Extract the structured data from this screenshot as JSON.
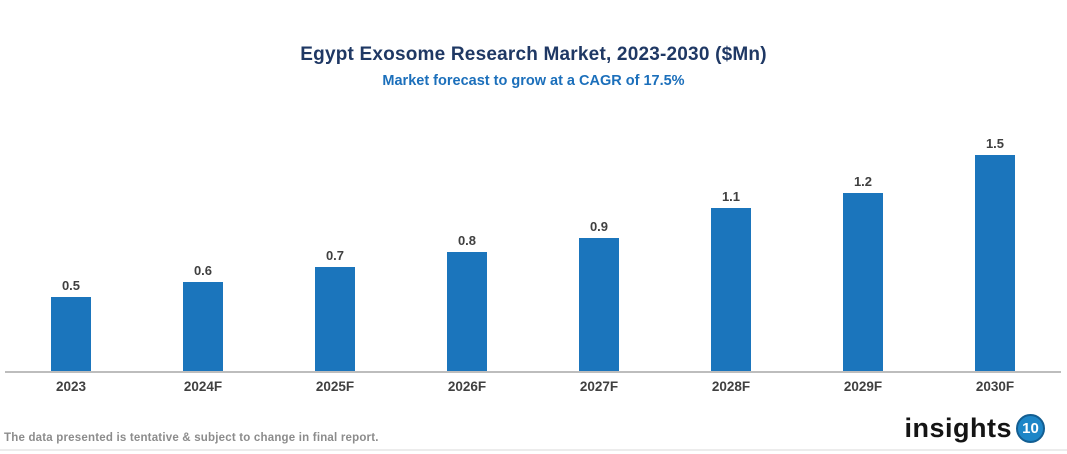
{
  "header": {
    "title": "Egypt Exosome Research Market, 2023-2030 ($Mn)",
    "subtitle": "Market forecast to grow at a CAGR of 17.5%"
  },
  "chart_data": {
    "type": "bar",
    "categories": [
      "2023",
      "2024F",
      "2025F",
      "2026F",
      "2027F",
      "2028F",
      "2029F",
      "2030F"
    ],
    "values": [
      0.5,
      0.6,
      0.7,
      0.8,
      0.9,
      1.1,
      1.2,
      1.5
    ],
    "title": "Egypt Exosome Research Market, 2023-2030 ($Mn)",
    "subtitle": "Market forecast to grow at a CAGR of 17.5%",
    "xlabel": "",
    "ylabel": "",
    "ylim": [
      0,
      1.6
    ],
    "grid": false,
    "legend": "none",
    "data_labels": true,
    "bar_color": "#1B75BC"
  },
  "footer": {
    "disclaimer": "The data presented is tentative & subject to change in final report.",
    "logo_text": "insights",
    "logo_badge": "10"
  },
  "colors": {
    "title": "#1F3864",
    "subtitle": "#1B6FBB",
    "bar": "#1B75BC",
    "axis_line": "#BDBDBD",
    "label_text": "#404040",
    "disclaimer_text": "#8C8C8C",
    "logo_badge_fill": "#1E86C7",
    "logo_badge_ring": "#135E92"
  }
}
